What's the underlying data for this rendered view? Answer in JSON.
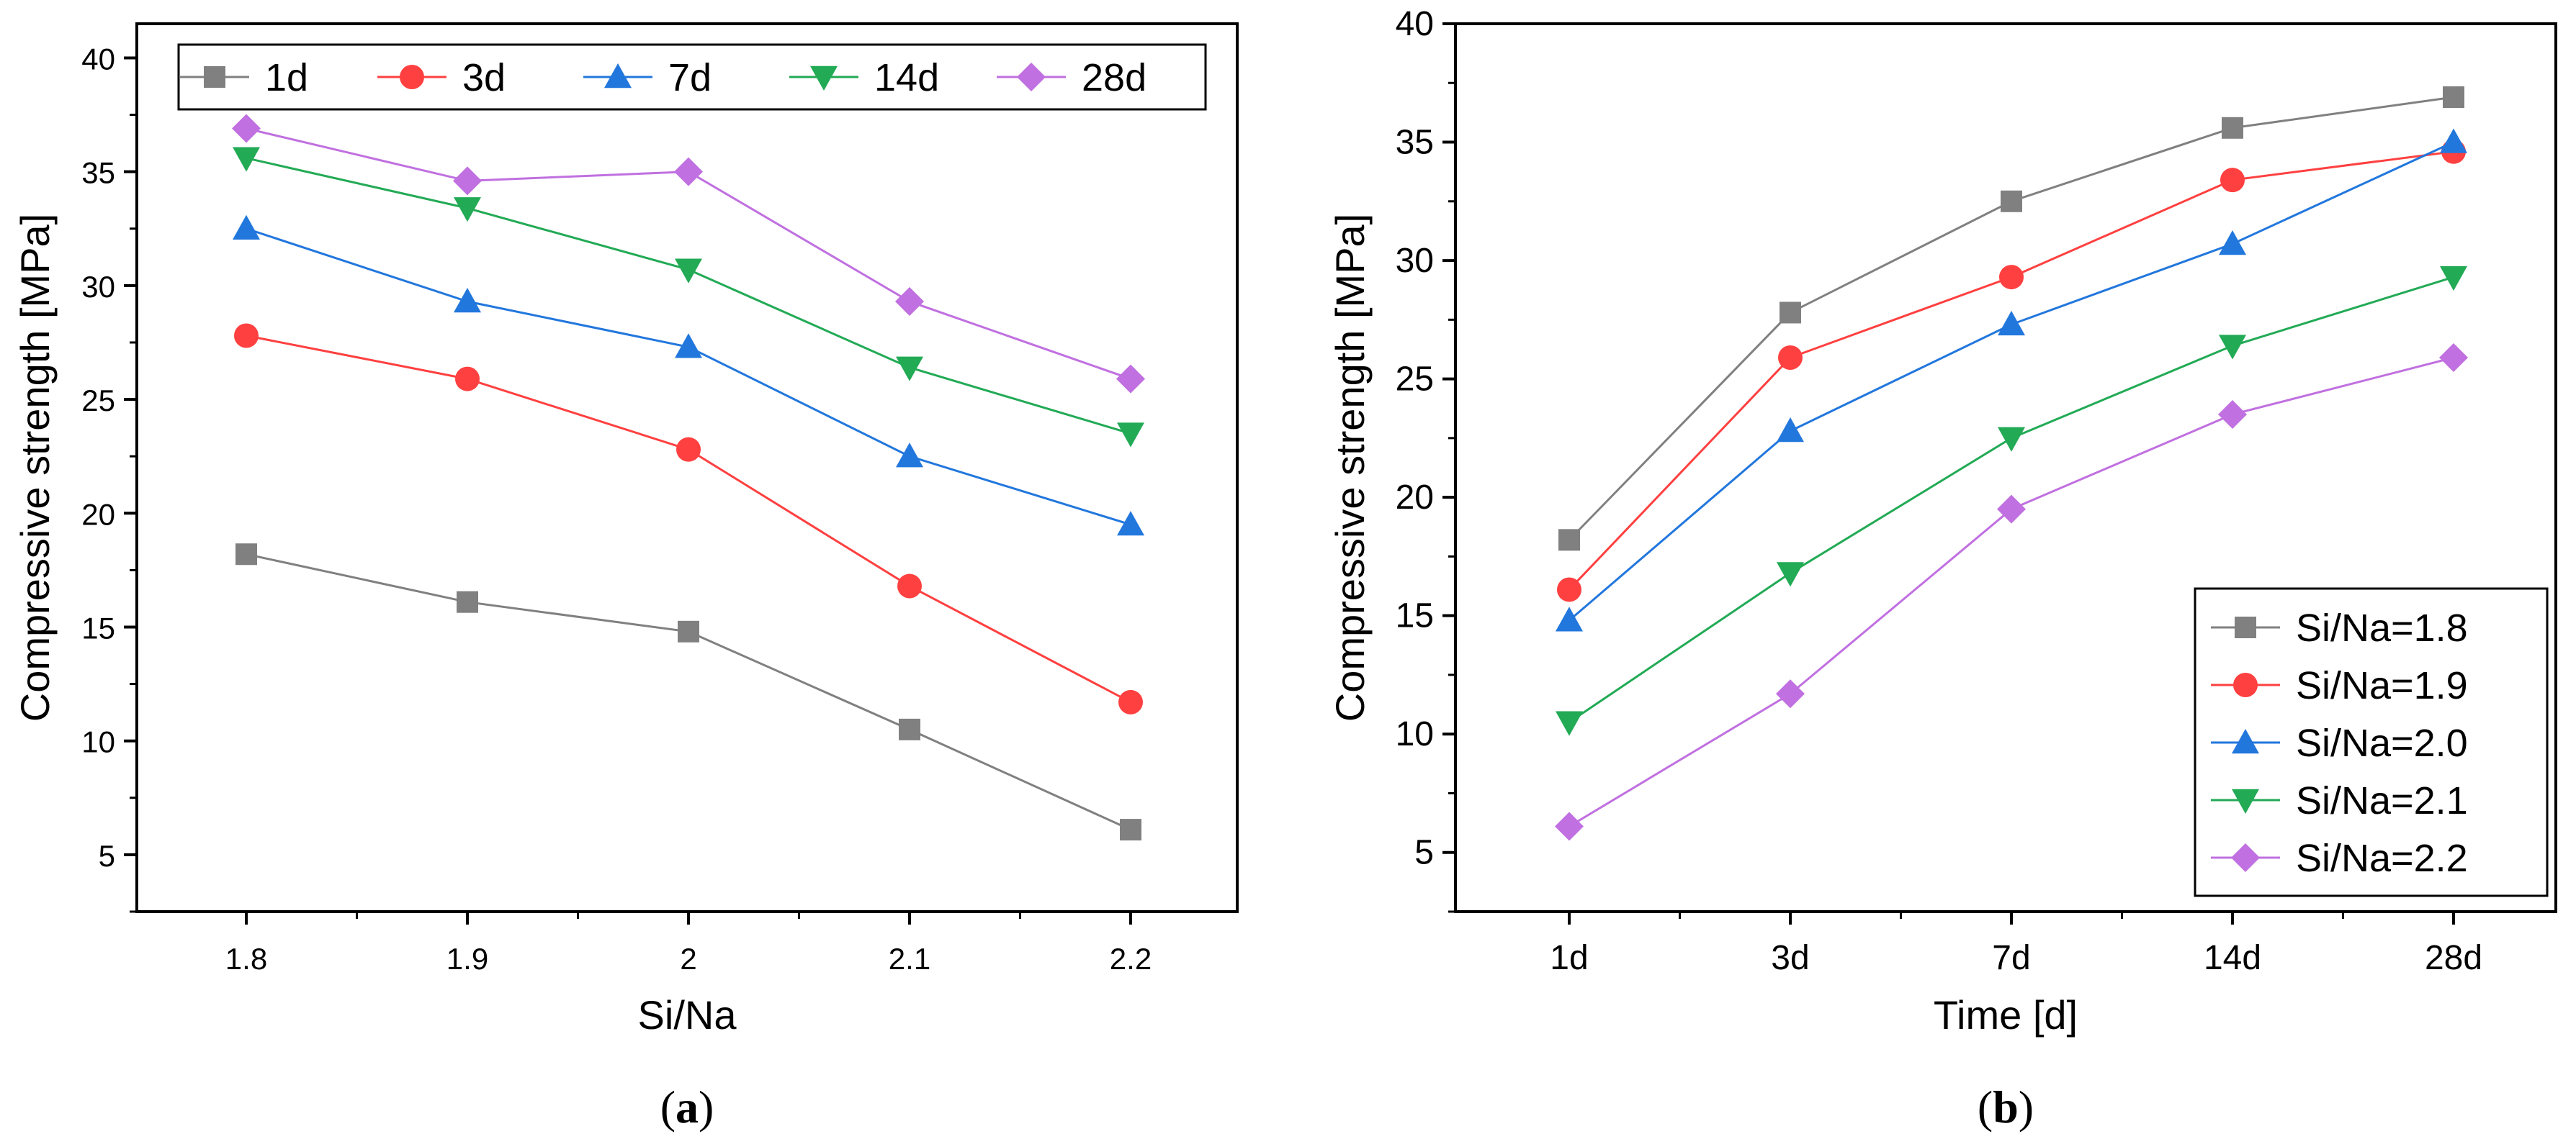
{
  "chart_data": [
    {
      "type": "line",
      "panel_label": "a",
      "title": "",
      "xlabel": "Si/Na",
      "ylabel": "Compressive strength [MPa]",
      "categories": [
        "1.8",
        "1.9",
        "2",
        "2.1",
        "2.2"
      ],
      "ylim": [
        2.5,
        41.5
      ],
      "yticks": [
        5,
        10,
        15,
        20,
        25,
        30,
        35,
        40
      ],
      "grid": false,
      "legend_position": "top",
      "series": [
        {
          "name": "1d",
          "color": "#808080",
          "marker": "square",
          "values": [
            18.2,
            16.1,
            14.8,
            10.5,
            6.1
          ]
        },
        {
          "name": "3d",
          "color": "#ff4040",
          "marker": "circle",
          "values": [
            27.8,
            25.9,
            22.8,
            16.8,
            11.7
          ]
        },
        {
          "name": "7d",
          "color": "#2277dd",
          "marker": "triangle-up",
          "values": [
            32.5,
            29.3,
            27.3,
            22.5,
            19.5
          ]
        },
        {
          "name": "14d",
          "color": "#22aa55",
          "marker": "triangle-down",
          "values": [
            35.6,
            33.4,
            30.7,
            26.4,
            23.5
          ]
        },
        {
          "name": "28d",
          "color": "#c070e0",
          "marker": "diamond",
          "values": [
            36.9,
            34.6,
            35.0,
            29.3,
            25.9
          ]
        }
      ]
    },
    {
      "type": "line",
      "panel_label": "b",
      "title": "",
      "xlabel": "Time [d]",
      "ylabel": "Compressive strength [MPa]",
      "categories": [
        "1d",
        "3d",
        "7d",
        "14d",
        "28d"
      ],
      "ylim": [
        2.5,
        40
      ],
      "yticks": [
        5,
        10,
        15,
        20,
        25,
        30,
        35,
        40
      ],
      "grid": false,
      "legend_position": "bottom-right",
      "series": [
        {
          "name": "Si/Na=1.8",
          "color": "#808080",
          "marker": "square",
          "values": [
            18.2,
            27.8,
            32.5,
            35.6,
            36.9
          ]
        },
        {
          "name": "Si/Na=1.9",
          "color": "#ff4040",
          "marker": "circle",
          "values": [
            16.1,
            25.9,
            29.3,
            33.4,
            34.6
          ]
        },
        {
          "name": "Si/Na=2.0",
          "color": "#2277dd",
          "marker": "triangle-up",
          "values": [
            14.8,
            22.8,
            27.3,
            30.7,
            35.0
          ]
        },
        {
          "name": "Si/Na=2.1",
          "color": "#22aa55",
          "marker": "triangle-down",
          "values": [
            10.5,
            16.8,
            22.5,
            26.4,
            29.3
          ]
        },
        {
          "name": "Si/Na=2.2",
          "color": "#c070e0",
          "marker": "diamond",
          "values": [
            6.1,
            11.7,
            19.5,
            23.5,
            25.9
          ]
        }
      ]
    }
  ]
}
